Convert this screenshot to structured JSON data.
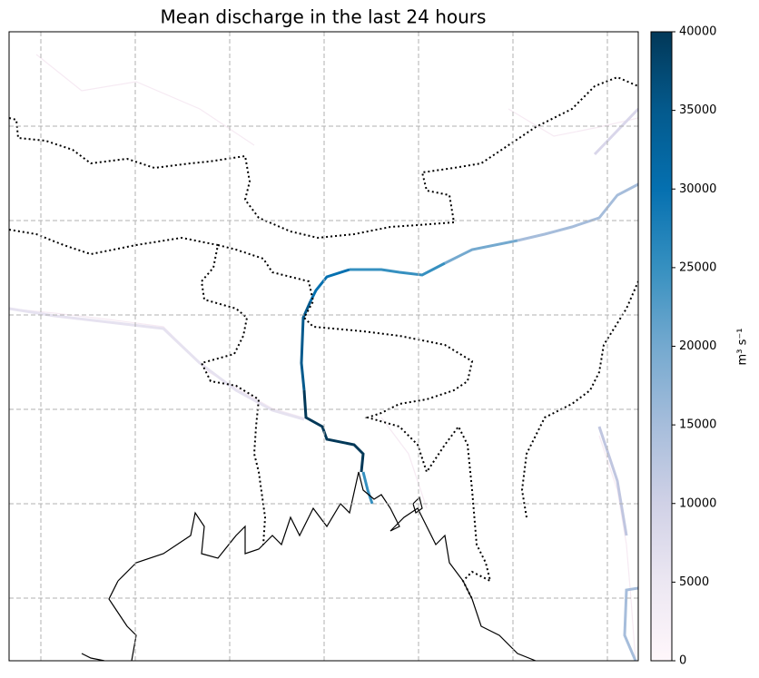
{
  "chart_data": {
    "type": "map",
    "title": "Mean discharge in the last 24 hours",
    "colorbar": {
      "label": "m³ s⁻¹",
      "lim": [
        0,
        40000
      ],
      "ticks": [
        0,
        5000,
        10000,
        15000,
        20000,
        25000,
        30000,
        35000,
        40000
      ],
      "colors": [
        "#fff7fb",
        "#ece7f2",
        "#d0d1e6",
        "#a6bddb",
        "#74a9cf",
        "#3690c0",
        "#0570b0",
        "#045a8d",
        "#023858"
      ]
    },
    "grid": true
  }
}
